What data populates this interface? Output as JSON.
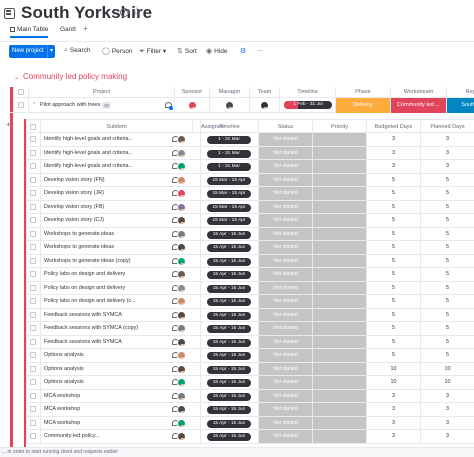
{
  "board": {
    "title": "South Yorkshire",
    "accent": "#0073ea",
    "group_color": "#e2445c"
  },
  "tabs": {
    "main": "Main Table",
    "gantt": "Gantt",
    "plus": "+"
  },
  "toolbar": {
    "new_project": "New project",
    "new_chev": "▾",
    "search": "Search",
    "person": "Person",
    "filter": "Filter",
    "filter_chev": "▾",
    "sort": "Sort",
    "hide": "Hide",
    "more": "···"
  },
  "group": {
    "title": "Community led policy making",
    "chevron": "⌄"
  },
  "columns": {
    "project": "Project",
    "sponsor": "Sponsor",
    "manager": "Manager",
    "team": "Team",
    "timeline": "Timeline",
    "phase": "Phase",
    "workstream": "Workstream",
    "region": "Region"
  },
  "parent": {
    "name": "Pilot approach with trees",
    "badge": "30",
    "timeline": "1 Feb - 31 Jul",
    "timeline_progress": 0.3,
    "phase": "Delivery",
    "phase_color": "#fdab3d",
    "workstream": "Community led ...",
    "workstream_color": "#e2445c",
    "region": "South York",
    "region_color": "#0086c0"
  },
  "sub_columns": {
    "subitem": "Subitem",
    "assignee": "Assignee",
    "timeline": "Timeline",
    "status": "Status",
    "priority": "Priority",
    "budgeted": "Budgeted Days",
    "planned": "Planned Days"
  },
  "subitems": [
    {
      "name": "Identify high-level goals and criteria...",
      "timeline": "1 - 31 Mar",
      "status": "Not started",
      "budgeted": "3",
      "planned": "3",
      "avatar": "#6b5b4e"
    },
    {
      "name": "Identify high-level goals and criteria...",
      "timeline": "1 - 31 Mar",
      "status": "Not started",
      "budgeted": "3",
      "planned": "3",
      "avatar": "#8a8a8a"
    },
    {
      "name": "Identify high-level goals and criteria...",
      "timeline": "1 - 31 Mar",
      "status": "Not started",
      "budgeted": "3",
      "planned": "3",
      "avatar": "#00a36c"
    },
    {
      "name": "Develop vision story (FN)",
      "timeline": "15 Mar - 15 Apr",
      "status": "Not started",
      "budgeted": "5",
      "planned": "5",
      "avatar": "#c98b6b"
    },
    {
      "name": "Develop vision story (JR)",
      "timeline": "15 Mar - 15 Apr",
      "status": "Not started",
      "budgeted": "5",
      "planned": "5",
      "avatar": "#e2445c"
    },
    {
      "name": "Develop vision story (FB)",
      "timeline": "15 Mar - 15 Apr",
      "status": "Not started",
      "budgeted": "5",
      "planned": "5",
      "avatar": "#8a6f9e"
    },
    {
      "name": "Develop vision story (CJ)",
      "timeline": "15 Mar - 15 Apr",
      "status": "Not started",
      "budgeted": "5",
      "planned": "5",
      "avatar": "#5a4a42"
    },
    {
      "name": "Workshops to generate ideas",
      "timeline": "15 Apr - 15 Jun",
      "status": "Not started",
      "budgeted": "5",
      "planned": "5",
      "avatar": "#7a7a7a"
    },
    {
      "name": "Workshops to generate ideas",
      "timeline": "15 Apr - 15 Jun",
      "status": "Not started",
      "budgeted": "5",
      "planned": "5",
      "avatar": "#4a4a4a"
    },
    {
      "name": "Workshops to generate ideas (copy)",
      "timeline": "15 Apr - 15 Jun",
      "status": "Not started",
      "budgeted": "5",
      "planned": "5",
      "avatar": "#00a36c"
    },
    {
      "name": "Policy labs on design and delivery",
      "timeline": "15 Apr - 15 Jun",
      "status": "Not started",
      "budgeted": "5",
      "planned": "5",
      "avatar": "#6b5b4e"
    },
    {
      "name": "Policy labs on design and delivery",
      "timeline": "15 Apr - 15 Jun",
      "status": "Not started",
      "budgeted": "5",
      "planned": "5",
      "avatar": "#8a8a8a"
    },
    {
      "name": "Policy labs on design and delivery (c...",
      "timeline": "15 Apr - 15 Jun",
      "status": "Not started",
      "budgeted": "5",
      "planned": "5",
      "avatar": "#c98b6b"
    },
    {
      "name": "Feedback sessions with SYMCA",
      "timeline": "15 Apr - 15 Jun",
      "status": "Not started",
      "budgeted": "5",
      "planned": "5",
      "avatar": "#5a4a42"
    },
    {
      "name": "Feedback sessions with SYMCA (copy)",
      "timeline": "15 Apr - 15 Jun",
      "status": "Not started",
      "budgeted": "5",
      "planned": "5",
      "avatar": "#7a7a7a"
    },
    {
      "name": "Feedback sessions with SYMCA",
      "timeline": "15 Apr - 15 Jun",
      "status": "Not started",
      "budgeted": "5",
      "planned": "5",
      "avatar": "#4a4a4a"
    },
    {
      "name": "Options analysis",
      "timeline": "15 Apr - 15 Jun",
      "status": "Not started",
      "budgeted": "5",
      "planned": "5",
      "avatar": "#c98b6b"
    },
    {
      "name": "Options analysis",
      "timeline": "15 Apr - 15 Jun",
      "status": "Not started",
      "budgeted": "10",
      "planned": "10",
      "avatar": "#5a4a42"
    },
    {
      "name": "Options analysis",
      "timeline": "15 Apr - 15 Jun",
      "status": "Not started",
      "budgeted": "10",
      "planned": "10",
      "avatar": "#00a36c"
    },
    {
      "name": "MCA workshop",
      "timeline": "15 Apr - 15 Jun",
      "status": "Not started",
      "budgeted": "3",
      "planned": "3",
      "avatar": "#7a7a7a"
    },
    {
      "name": "MCA workshop",
      "timeline": "15 Apr - 15 Jun",
      "status": "Not started",
      "budgeted": "3",
      "planned": "3",
      "avatar": "#4a4a4a"
    },
    {
      "name": "MCA workshop",
      "timeline": "15 Apr - 15 Jun",
      "status": "Not started",
      "budgeted": "3",
      "planned": "3",
      "avatar": "#00a36c"
    },
    {
      "name": "Community-led policy...",
      "timeline": "15 Apr - 15 Jun",
      "status": "Not started",
      "budgeted": "3",
      "planned": "3",
      "avatar": "#5a4a42"
    }
  ],
  "footer": "... in order to start running client and requests earlier"
}
